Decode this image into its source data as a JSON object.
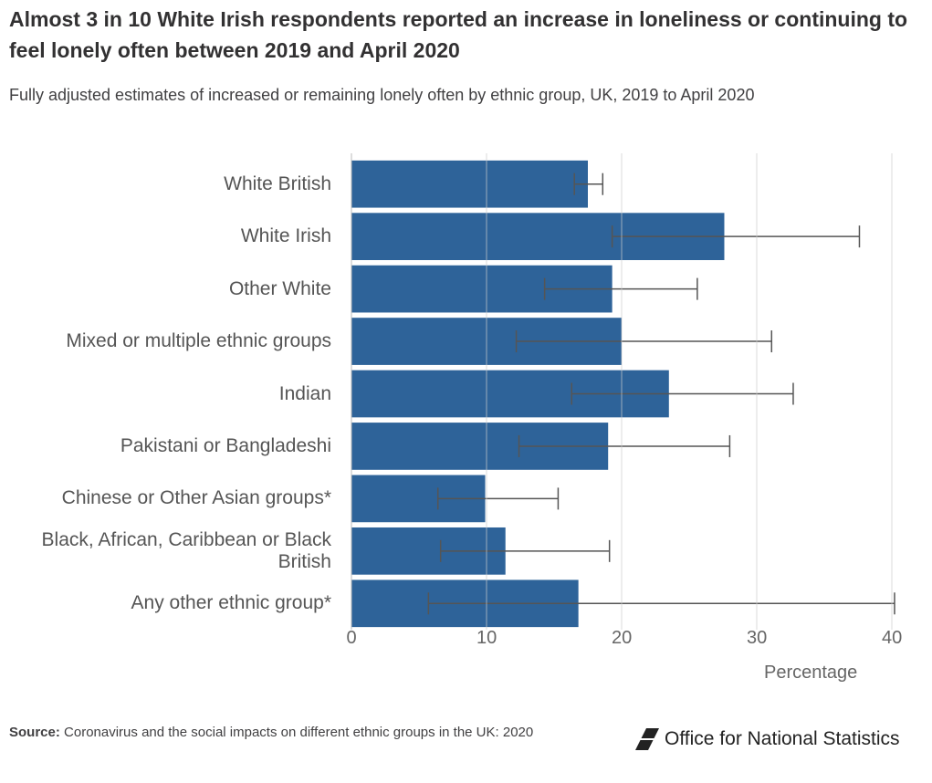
{
  "chart_data": {
    "type": "bar",
    "orientation": "horizontal",
    "title": "Almost 3 in 10 White Irish respondents reported an increase in loneliness or continuing to feel lonely often between 2019 and April 2020",
    "subtitle": "Fully adjusted estimates of increased or remaining lonely often by ethnic group, UK, 2019 to April 2020",
    "categories": [
      "White British",
      "White Irish",
      "Other White",
      "Mixed or multiple ethnic groups",
      "Indian",
      "Pakistani or Bangladeshi",
      "Chinese or Other Asian groups*",
      "Black, African, Caribbean or Black British",
      "Any other ethnic group*"
    ],
    "values": [
      17.5,
      27.6,
      19.3,
      20.0,
      23.5,
      19.0,
      9.9,
      11.4,
      16.8
    ],
    "lower": [
      16.5,
      19.3,
      14.3,
      12.2,
      16.3,
      12.4,
      6.4,
      6.6,
      5.7
    ],
    "upper": [
      18.6,
      37.6,
      25.6,
      31.1,
      32.7,
      28.0,
      15.3,
      19.1,
      40.2
    ],
    "color": "#2e6399",
    "xlim": [
      0,
      40
    ],
    "xticks": [
      0,
      10,
      20,
      30,
      40
    ],
    "grid": true,
    "xlabel": "Percentage"
  },
  "footer": {
    "source_label": "Source:",
    "source": "Coronavirus and the social impacts on different ethnic groups in the UK: 2020",
    "logo": "Office for National Statistics"
  }
}
